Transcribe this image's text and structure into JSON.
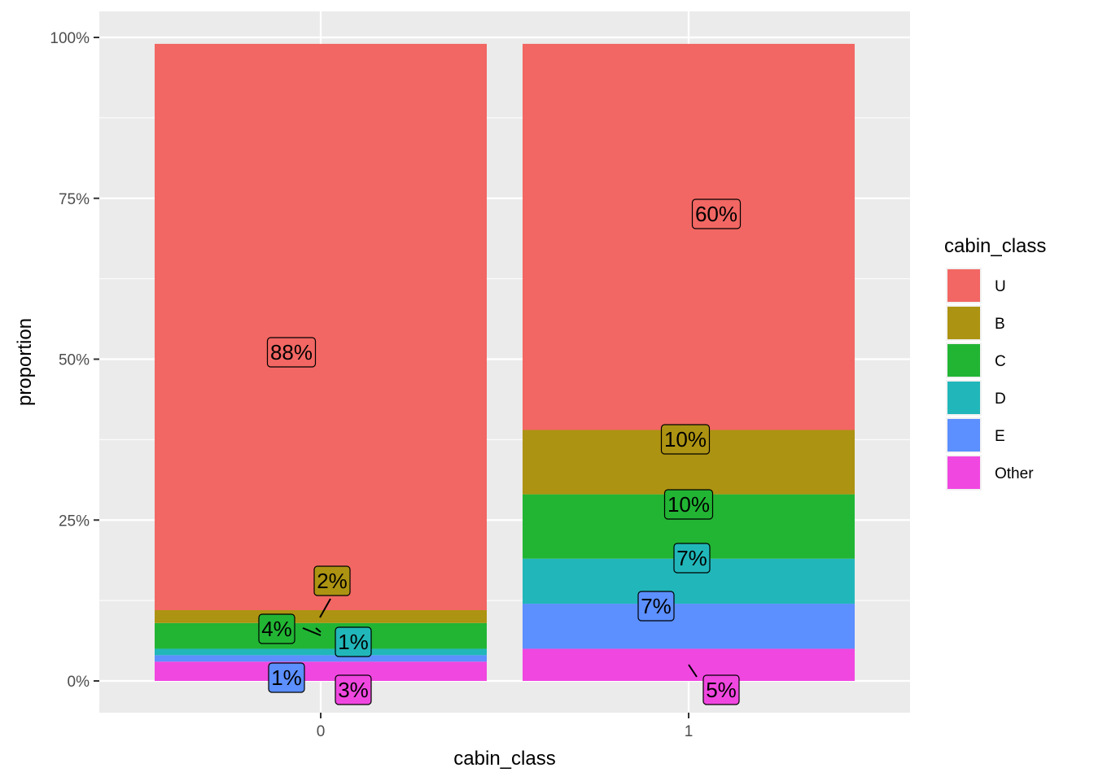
{
  "chart_data": {
    "type": "bar",
    "stacked": true,
    "xlabel": "cabin_class",
    "ylabel": "proportion",
    "ylim": [
      -0.05,
      1.0
    ],
    "y_ticks": [
      0,
      0.25,
      0.5,
      0.75,
      1.0
    ],
    "y_tick_labels": [
      "0%",
      "25%",
      "50%",
      "75%",
      "100%"
    ],
    "categories": [
      "0",
      "1"
    ],
    "grid": true,
    "legend_position": "right",
    "legend_title": "cabin_class",
    "series": [
      {
        "name": "Other",
        "color": "#F047E0",
        "values": [
          0.03,
          0.05
        ],
        "labels": [
          "3%",
          "5%"
        ]
      },
      {
        "name": "E",
        "color": "#5C8FFF",
        "values": [
          0.01,
          0.07
        ],
        "labels": [
          "1%",
          "7%"
        ]
      },
      {
        "name": "D",
        "color": "#21B7BA",
        "values": [
          0.01,
          0.07
        ],
        "labels": [
          "1%",
          "7%"
        ]
      },
      {
        "name": "C",
        "color": "#22B534",
        "values": [
          0.04,
          0.1
        ],
        "labels": [
          "4%",
          "10%"
        ]
      },
      {
        "name": "B",
        "color": "#AD9312",
        "values": [
          0.02,
          0.1
        ],
        "labels": [
          "2%",
          "10%"
        ]
      },
      {
        "name": "U",
        "color": "#F26763",
        "values": [
          0.88,
          0.6
        ],
        "labels": [
          "88%",
          "60%"
        ]
      }
    ],
    "legend_order": [
      "U",
      "B",
      "C",
      "D",
      "E",
      "Other"
    ]
  }
}
